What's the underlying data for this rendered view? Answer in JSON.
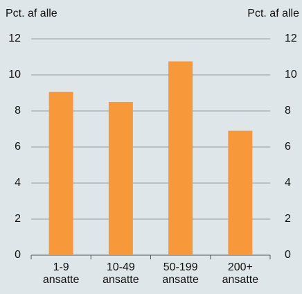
{
  "chart_data": {
    "type": "bar",
    "y_label": "Pct. af alle",
    "y2_label": "Pct. af alle",
    "categories": [
      "1-9 ansatte",
      "10-49 ansatte",
      "50-199 ansatte",
      "200+ ansatte"
    ],
    "values": [
      9.05,
      8.5,
      10.75,
      6.9
    ],
    "color": "#f7993a",
    "ylim": [
      0,
      12
    ],
    "yticks": [
      0,
      2,
      4,
      6,
      8,
      10,
      12
    ],
    "y2lim": [
      0,
      12
    ],
    "y2ticks": [
      0,
      2,
      4,
      6,
      8,
      10,
      12
    ],
    "grid": true
  }
}
